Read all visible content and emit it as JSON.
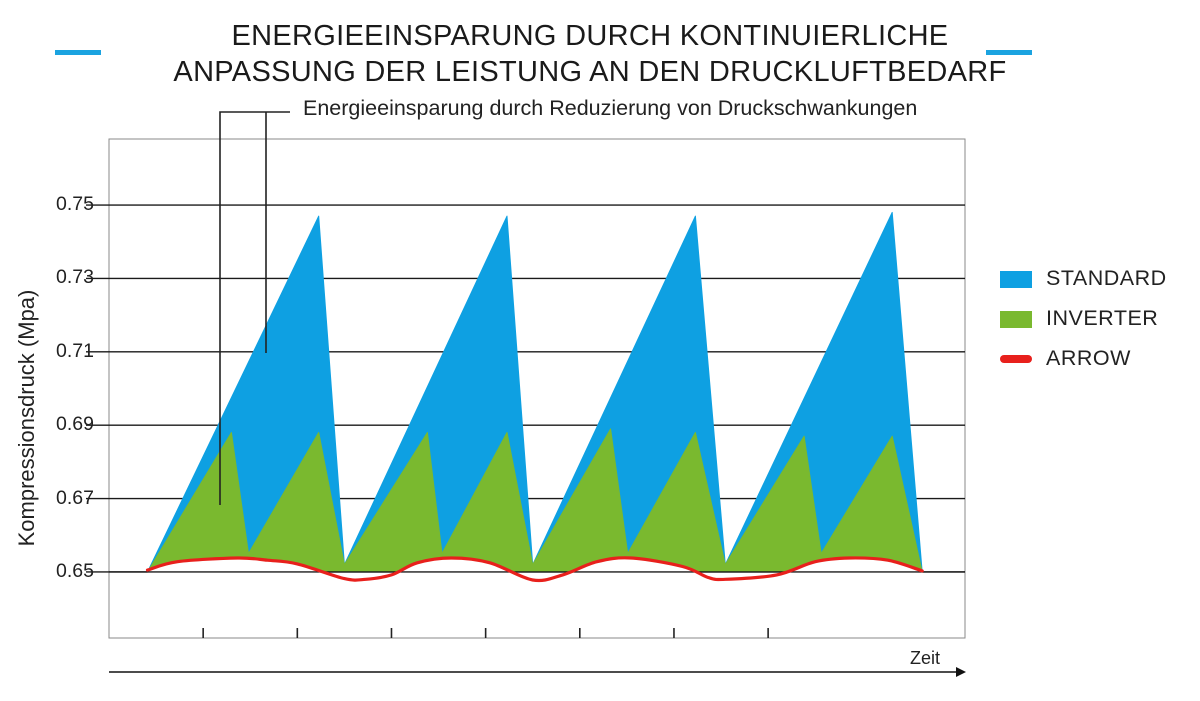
{
  "header": {
    "title_line1": "ENERGIEEINSPARUNG DURCH KONTINUIERLICHE",
    "title_line2": "ANPASSUNG  DER LEISTUNG AN DEN DRUCKLUFTBEDARF",
    "accent_color": "#1ba3e0"
  },
  "annotation": "Energieeinsparung durch Reduzierung von Druckschwankungen",
  "chart_data": {
    "type": "area",
    "ylabel": "Kompressionsdruck (Mpa)",
    "xlabel": "Zeit",
    "ylim": [
      0.632,
      0.768
    ],
    "xlim": [
      0,
      100
    ],
    "yticks": [
      "0.75",
      "0.73",
      "0.71",
      "0.69",
      "0.67",
      "0.65"
    ],
    "ytick_values": [
      0.75,
      0.73,
      0.71,
      0.69,
      0.67,
      0.65
    ],
    "xticks": [
      11,
      22,
      33,
      44,
      55,
      66,
      77
    ],
    "grid": "horizontal",
    "legend_position": "right",
    "series": [
      {
        "name": "STANDARD",
        "color": "#0ea0e2",
        "x": [
          4.5,
          24.5,
          27.5,
          46.5,
          49.5,
          68.5,
          72,
          91.5,
          95
        ],
        "y": [
          0.65,
          0.747,
          0.652,
          0.747,
          0.652,
          0.747,
          0.652,
          0.748,
          0.65
        ]
      },
      {
        "name": "INVERTER",
        "color": "#7ab92f",
        "x": [
          4.5,
          14.3,
          16.3,
          24.5,
          27.5,
          37.2,
          38.9,
          46.5,
          49.5,
          58.6,
          60.6,
          68.5,
          72,
          81.2,
          83.2,
          91.5,
          95
        ],
        "y": [
          0.65,
          0.688,
          0.655,
          0.688,
          0.652,
          0.688,
          0.655,
          0.688,
          0.652,
          0.689,
          0.655,
          0.688,
          0.652,
          0.687,
          0.655,
          0.687,
          0.65
        ]
      },
      {
        "name": "ARROW",
        "color": "#e8201c",
        "x": [
          4.5,
          8,
          15,
          18.5,
          22,
          27.5,
          30,
          33,
          36,
          40,
          44.5,
          49.5,
          53,
          57,
          61,
          67,
          70,
          72,
          78,
          82.5,
          86.5,
          91,
          95
        ],
        "y": [
          0.6505,
          0.6528,
          0.6538,
          0.6532,
          0.6522,
          0.6482,
          0.648,
          0.6492,
          0.6525,
          0.6538,
          0.6525,
          0.6478,
          0.6492,
          0.6528,
          0.6538,
          0.6515,
          0.6485,
          0.648,
          0.6492,
          0.6528,
          0.6538,
          0.6532,
          0.6503
        ]
      }
    ]
  }
}
